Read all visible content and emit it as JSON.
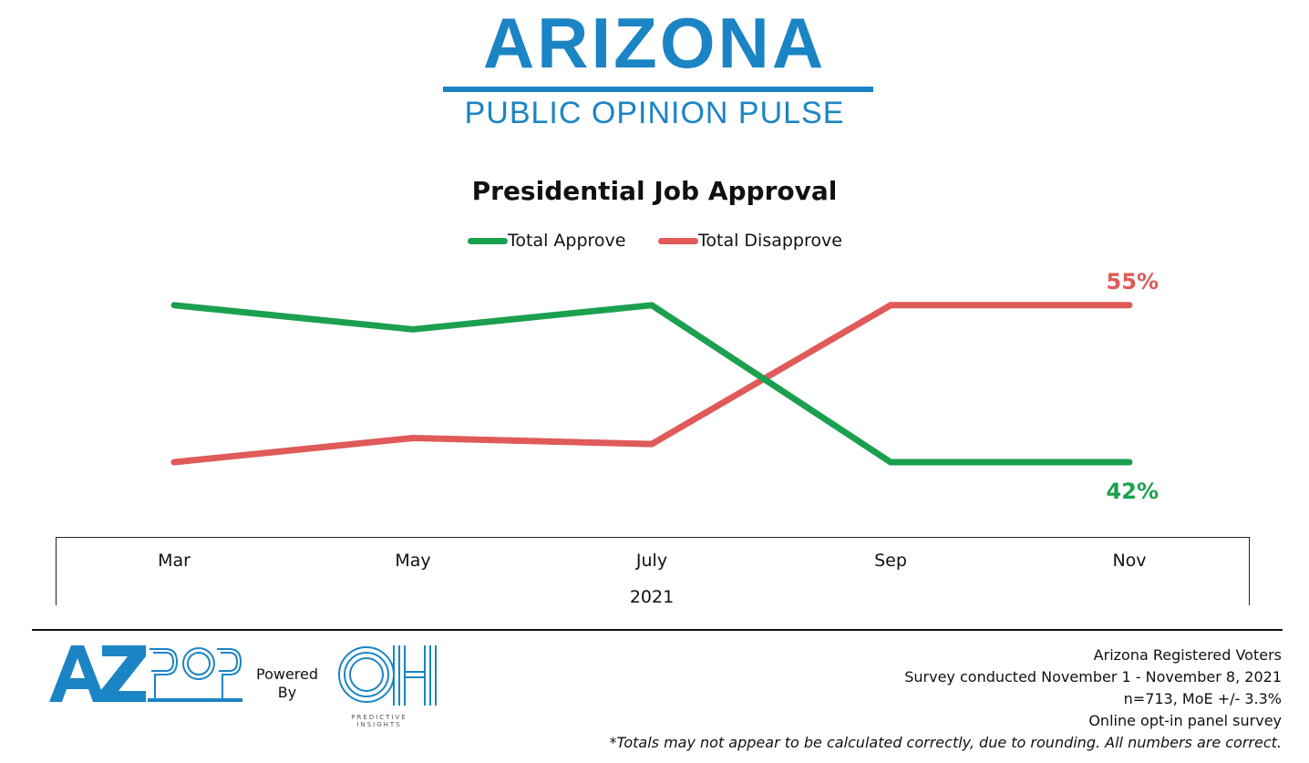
{
  "header": {
    "logo_title": "ARIZONA",
    "logo_subtitle": "PUBLIC OPINION PULSE"
  },
  "colors": {
    "brand_blue": "#1b84c4",
    "approve": "#1ba04f",
    "disapprove": "#e05a5a"
  },
  "chart_data": {
    "type": "line",
    "title": "Presidential Job Approval",
    "categories": [
      "Mar",
      "May",
      "July",
      "Sep",
      "Nov"
    ],
    "x_group_label": "2021",
    "series": [
      {
        "name": "Total Approve",
        "values": [
          55,
          53,
          55,
          42,
          42
        ],
        "color": "#1ba04f"
      },
      {
        "name": "Total Disapprove",
        "values": [
          42,
          44,
          43.5,
          55,
          55
        ],
        "color": "#e05a5a"
      }
    ],
    "data_labels": [
      {
        "series": "Total Disapprove",
        "category": "Nov",
        "text": "55%"
      },
      {
        "series": "Total Approve",
        "category": "Nov",
        "text": "42%"
      }
    ],
    "ylim": [
      38,
      58
    ],
    "grid": false,
    "legend_position": "top-center"
  },
  "footer": {
    "azpop_logo": "AZPOP",
    "powered_by": "Powered By",
    "predictive_logo": "OH",
    "predictive_text": "PREDICTIVE INSIGHTS",
    "lines": [
      "Arizona Registered Voters",
      "Survey conducted November 1 - November 8, 2021",
      "n=713, MoE +/- 3.3%",
      "Online opt-in panel survey"
    ],
    "note": "*Totals may not appear to be calculated correctly, due to rounding. All numbers are correct."
  }
}
